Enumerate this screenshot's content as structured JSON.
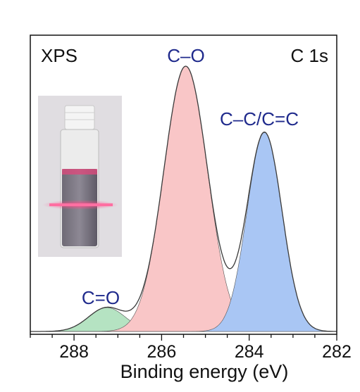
{
  "chart_data": {
    "type": "area",
    "title": "",
    "xlabel": "Binding energy (eV)",
    "ylabel": "",
    "xlim": [
      289,
      282
    ],
    "x_reversed": true,
    "x_ticks": [
      "288",
      "286",
      "284",
      "282"
    ],
    "grid": false,
    "legend": "none",
    "annotations": {
      "left": "XPS",
      "right": "C 1s"
    },
    "series": [
      {
        "name": "C=O",
        "center": 287.25,
        "height": 0.09,
        "sigma": 0.42,
        "color": "#b5e3c2"
      },
      {
        "name": "C–O",
        "center": 285.45,
        "height": 1.0,
        "sigma": 0.5,
        "color": "#f9c6c7"
      },
      {
        "name": "C–C/C=C",
        "center": 283.65,
        "height": 0.75,
        "sigma": 0.4,
        "color": "#a9c6f4"
      }
    ],
    "colors": {
      "envelope": "#3a3a3a",
      "peak_label": "#1f2a8c"
    },
    "inset_image": "vial-with-red-laser-beam"
  }
}
